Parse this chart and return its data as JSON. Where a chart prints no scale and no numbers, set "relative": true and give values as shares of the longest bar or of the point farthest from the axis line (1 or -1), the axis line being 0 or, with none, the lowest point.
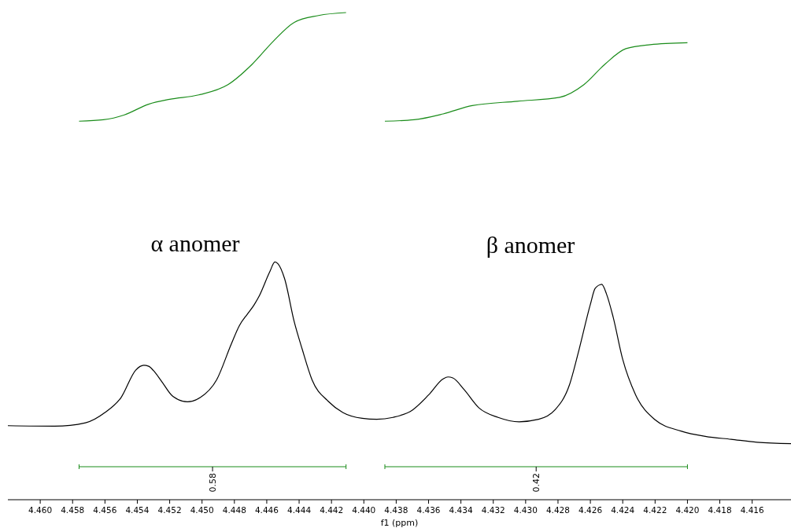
{
  "chart_data": {
    "type": "line",
    "relative": true,
    "xlabel": "f1 (ppm)",
    "xlim": [
      4.462,
      4.4136
    ],
    "xticks": [
      {
        "value": 4.46,
        "label": "4.460"
      },
      4.458,
      4.456,
      4.454,
      4.452,
      {
        "value": 4.45,
        "label": "4.450"
      },
      4.448,
      4.446,
      4.444,
      4.442,
      {
        "value": 4.44,
        "label": "4.440"
      },
      4.438,
      4.436,
      4.434,
      4.432,
      {
        "value": 4.43,
        "label": "4.430"
      },
      4.428,
      4.426,
      4.424,
      4.422,
      {
        "value": 4.42,
        "label": "4.420"
      },
      4.418,
      4.416
    ],
    "tick_labels": "x",
    "grid": false,
    "line_style": "solid",
    "series": [
      {
        "color": "#000000",
        "x": [
          4.462,
          4.4591,
          4.4572,
          4.456,
          4.455,
          4.4541,
          4.4536,
          4.4533,
          4.453,
          4.4525,
          4.4518,
          4.4509,
          4.4501,
          4.4491,
          4.4482,
          4.4477,
          4.4472,
          4.4468,
          4.4465,
          4.4458,
          4.4455,
          4.4453,
          4.4449,
          4.4443,
          4.4438,
          4.4432,
          4.4422,
          4.4413,
          4.4401,
          4.4392,
          4.4382,
          4.437,
          4.436,
          4.4351,
          4.4348,
          4.4345,
          4.4338,
          4.4329,
          4.4317,
          4.4304,
          4.4292,
          4.4282,
          4.4273,
          4.4267,
          4.426,
          4.4257,
          4.4253,
          4.425,
          4.4246,
          4.424,
          4.4232,
          4.422,
          4.4204,
          4.4189,
          4.4173,
          4.4157,
          4.4136
        ],
        "values": [
          0.152,
          0.151,
          0.158,
          0.179,
          0.21,
          0.266,
          0.276,
          0.274,
          0.265,
          0.243,
          0.212,
          0.201,
          0.21,
          0.246,
          0.319,
          0.357,
          0.381,
          0.399,
          0.416,
          0.469,
          0.488,
          0.484,
          0.454,
          0.365,
          0.308,
          0.246,
          0.202,
          0.179,
          0.167,
          0.165,
          0.169,
          0.184,
          0.215,
          0.248,
          0.252,
          0.25,
          0.226,
          0.189,
          0.169,
          0.16,
          0.165,
          0.184,
          0.235,
          0.308,
          0.401,
          0.434,
          0.442,
          0.422,
          0.376,
          0.288,
          0.215,
          0.164,
          0.141,
          0.13,
          0.124,
          0.118,
          0.115
        ]
      },
      {
        "color": "#1a8c1a",
        "x": [
          4.4576,
          4.4561,
          4.4548,
          4.4533,
          4.452,
          4.4502,
          4.4484,
          4.4469,
          4.4456,
          4.4443,
          4.4428,
          4.4411
        ],
        "values": [
          0.777,
          0.78,
          0.79,
          0.812,
          0.822,
          0.831,
          0.852,
          0.894,
          0.941,
          0.98,
          0.994,
          1
        ]
      },
      {
        "color": "#1a8c1a",
        "x": [
          4.4387,
          4.4369,
          4.4351,
          4.4333,
          4.4305,
          4.4279,
          4.4264,
          4.4251,
          4.4238,
          4.4223,
          4.42
        ],
        "values": [
          0.777,
          0.78,
          0.792,
          0.809,
          0.818,
          0.826,
          0.852,
          0.894,
          0.926,
          0.934,
          0.938
        ]
      }
    ],
    "annotations": [
      "α anomer",
      "β anomer",
      "0.58",
      "0.42"
    ]
  }
}
